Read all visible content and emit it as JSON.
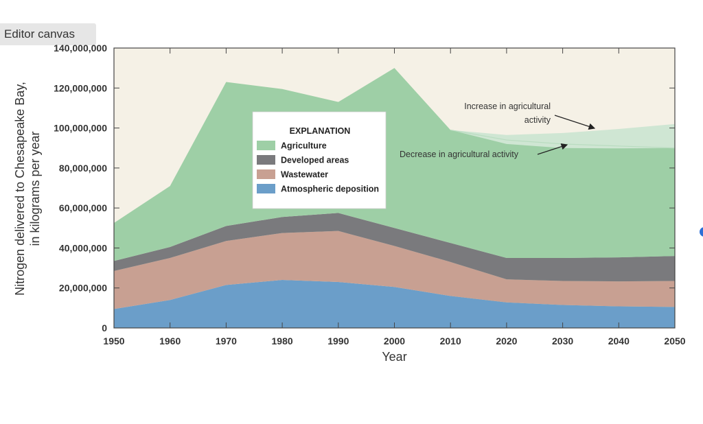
{
  "editor": {
    "label": "Editor canvas"
  },
  "chart_data": {
    "type": "area",
    "title": "",
    "xlabel": "Year",
    "ylabel_line1": "Nitrogen delivered to Chesapeake Bay,",
    "ylabel_line2": "in kilograms per year",
    "xlim": [
      1950,
      2050
    ],
    "ylim": [
      0,
      140000000
    ],
    "x": [
      1950,
      1960,
      1970,
      1980,
      1990,
      2000,
      2010,
      2020,
      2030,
      2040,
      2050
    ],
    "x_ticks": [
      "1950",
      "1960",
      "1970",
      "1980",
      "1990",
      "2000",
      "2010",
      "2020",
      "2030",
      "2040",
      "2050"
    ],
    "y_ticks": [
      "0",
      "20,000,000",
      "40,000,000",
      "60,000,000",
      "80,000,000",
      "100,000,000",
      "120,000,000",
      "140,000,000"
    ],
    "y_tick_values": [
      0,
      20000000,
      40000000,
      60000000,
      80000000,
      100000000,
      120000000,
      140000000
    ],
    "legend_title": "EXPLANATION",
    "series": [
      {
        "name": "Atmospheric deposition",
        "color": "#6b9ec9",
        "values": [
          9500000,
          14000000,
          21500000,
          24000000,
          23000000,
          20500000,
          16000000,
          12800000,
          11500000,
          10800000,
          10500000
        ]
      },
      {
        "name": "Wastewater",
        "color": "#c8a092",
        "values": [
          19000000,
          21000000,
          22000000,
          23500000,
          25500000,
          20500000,
          17000000,
          11500000,
          12000000,
          12500000,
          13000000
        ]
      },
      {
        "name": "Developed areas",
        "color": "#7a7a7d",
        "values": [
          5000000,
          5500000,
          7500000,
          8000000,
          9000000,
          9000000,
          9500000,
          10700000,
          11500000,
          12000000,
          12500000
        ]
      },
      {
        "name": "Agriculture",
        "color": "#9ecfa6",
        "values": [
          19000000,
          30500000,
          72000000,
          64000000,
          55500000,
          80000000,
          56500000,
          57000000,
          55000000,
          54500000,
          54000000
        ]
      }
    ],
    "scenario_increase": {
      "label": "Increase in agricultural activity",
      "label_line1": "Increase in agricultural",
      "label_line2": "activity",
      "color": "#cfe6d3",
      "x": [
        2010,
        2020,
        2030,
        2040,
        2050
      ],
      "upper": [
        99000000,
        96500000,
        97500000,
        99500000,
        102000000
      ]
    },
    "scenario_decrease": {
      "label": "Decrease in agricultural activity",
      "x": [
        2010,
        2020,
        2030,
        2040,
        2050
      ],
      "upper": [
        99000000,
        94000000,
        92000000,
        91000000,
        90000000
      ]
    },
    "legend_entries": [
      "Agriculture",
      "Developed areas",
      "Wastewater",
      "Atmospheric deposition"
    ],
    "legend_colors": [
      "#9ecfa6",
      "#7a7a7d",
      "#c8a092",
      "#6b9ec9"
    ]
  }
}
